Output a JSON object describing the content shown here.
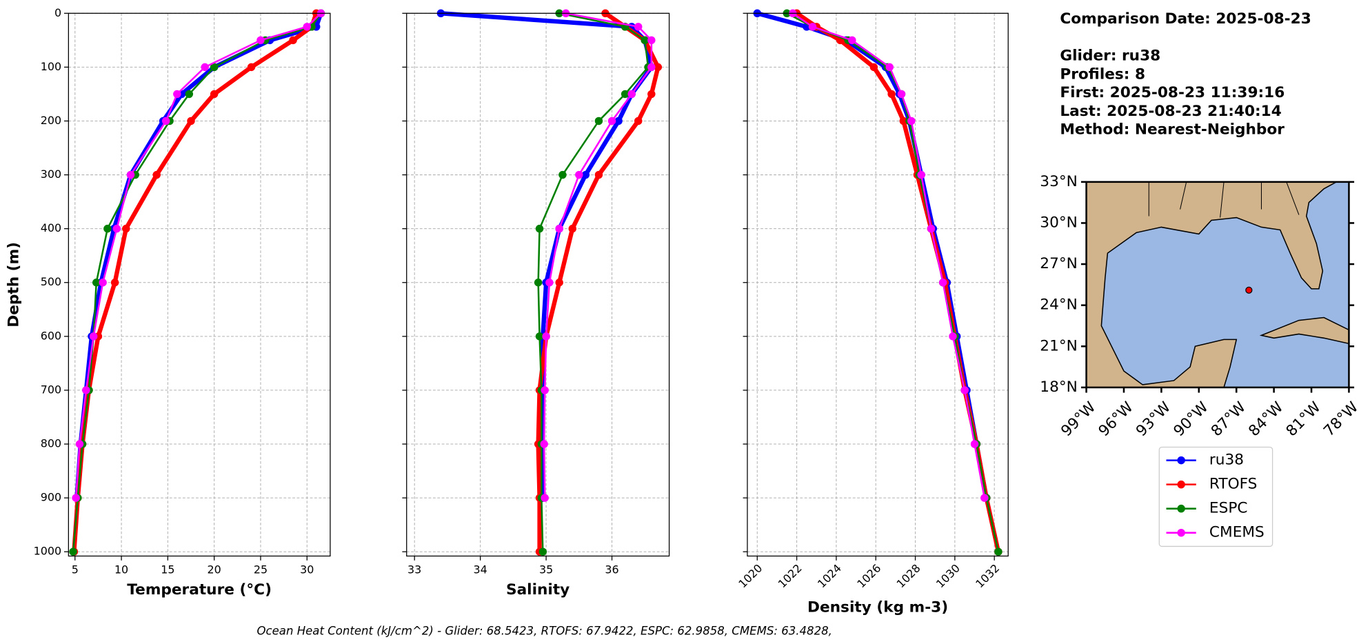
{
  "chart_data": [
    {
      "type": "line",
      "xlabel": "Temperature (°C)",
      "ylabel": "Depth (m)",
      "xlim": [
        4.3,
        32.5
      ],
      "xticks": [
        5,
        10,
        15,
        20,
        25,
        30
      ],
      "ylim": [
        1008,
        0
      ],
      "yticks": [
        0,
        100,
        200,
        300,
        400,
        500,
        600,
        700,
        800,
        900,
        1000
      ],
      "show_ytick_labels": true,
      "grid": true,
      "depth": [
        0,
        25,
        50,
        100,
        150,
        200,
        300,
        400,
        500,
        600,
        700,
        800,
        900,
        1000
      ],
      "series": [
        {
          "name": "ru38",
          "color": "#0000ff",
          "linewidth": 5,
          "values": [
            31.5,
            31,
            26,
            20,
            16.5,
            14.5,
            11,
            9.2,
            7.8,
            6.8,
            6.2,
            5.6,
            5.2,
            null
          ]
        },
        {
          "name": "RTOFS",
          "color": "#ff0000",
          "linewidth": 5,
          "values": [
            31,
            30.5,
            28.5,
            24,
            20,
            17.5,
            13.8,
            10.5,
            9.3,
            7.5,
            6.5,
            5.8,
            5.3,
            4.9
          ]
        },
        {
          "name": "ESPC",
          "color": "#008000",
          "linewidth": 2,
          "values": [
            31.5,
            30.5,
            25.5,
            20,
            17.3,
            15.2,
            11.5,
            8.5,
            7.3,
            7,
            6.5,
            5.8,
            5.3,
            4.8
          ]
        },
        {
          "name": "CMEMS",
          "color": "#ff00ff",
          "linewidth": 2,
          "values": [
            31.5,
            30,
            25,
            19,
            16,
            14.8,
            11,
            9.5,
            8,
            7,
            6.2,
            5.5,
            5.1,
            null
          ]
        }
      ]
    },
    {
      "type": "line",
      "xlabel": "Salinity",
      "xlim": [
        32.88,
        36.87
      ],
      "xticks": [
        33,
        34,
        35,
        36
      ],
      "ylim": [
        1008,
        0
      ],
      "yticks": [
        0,
        100,
        200,
        300,
        400,
        500,
        600,
        700,
        800,
        900,
        1000
      ],
      "show_ytick_labels": false,
      "grid": true,
      "depth": [
        0,
        25,
        50,
        100,
        150,
        200,
        300,
        400,
        500,
        600,
        700,
        800,
        900,
        1000
      ],
      "series": [
        {
          "name": "ru38",
          "color": "#0000ff",
          "linewidth": 5,
          "values": [
            33.4,
            36.3,
            36.5,
            36.6,
            36.3,
            36.1,
            35.6,
            35.2,
            35.0,
            34.95,
            34.95,
            34.95,
            34.95,
            null
          ]
        },
        {
          "name": "RTOFS",
          "color": "#ff0000",
          "linewidth": 5,
          "values": [
            35.9,
            36.2,
            36.5,
            36.7,
            36.6,
            36.4,
            35.8,
            35.4,
            35.2,
            35.0,
            34.9,
            34.88,
            34.9,
            34.9
          ]
        },
        {
          "name": "ESPC",
          "color": "#008000",
          "linewidth": 2,
          "values": [
            35.2,
            36.2,
            36.5,
            36.55,
            36.2,
            35.8,
            35.25,
            34.9,
            34.88,
            34.9,
            34.93,
            34.93,
            34.93,
            34.95
          ]
        },
        {
          "name": "CMEMS",
          "color": "#ff00ff",
          "linewidth": 2,
          "values": [
            35.3,
            36.4,
            36.6,
            36.6,
            36.3,
            36.0,
            35.5,
            35.2,
            35.05,
            35.0,
            34.98,
            34.97,
            34.98,
            null
          ]
        }
      ]
    },
    {
      "type": "line",
      "xlabel": "Density (kg m-3)",
      "xlim": [
        1019.5,
        1032.7
      ],
      "xticks": [
        1020,
        1022,
        1024,
        1026,
        1028,
        1030,
        1032
      ],
      "xtick_rotation": -45,
      "ylim": [
        1008,
        0
      ],
      "yticks": [
        0,
        100,
        200,
        300,
        400,
        500,
        600,
        700,
        800,
        900,
        1000
      ],
      "show_ytick_labels": false,
      "grid": true,
      "depth": [
        0,
        25,
        50,
        100,
        150,
        200,
        300,
        400,
        500,
        600,
        700,
        800,
        900,
        1000
      ],
      "series": [
        {
          "name": "ru38",
          "color": "#0000ff",
          "linewidth": 5,
          "values": [
            1020,
            1022.5,
            1024.5,
            1026.5,
            1027.2,
            1027.7,
            1028.3,
            1028.9,
            1029.6,
            1030.1,
            1030.6,
            1031.1,
            1031.6,
            null
          ]
        },
        {
          "name": "RTOFS",
          "color": "#ff0000",
          "linewidth": 5,
          "values": [
            1022,
            1023,
            1024.2,
            1025.9,
            1026.8,
            1027.4,
            1028.1,
            1028.8,
            1029.5,
            1030.0,
            1030.5,
            1031.1,
            1031.6,
            1032.2
          ]
        },
        {
          "name": "ESPC",
          "color": "#008000",
          "linewidth": 2,
          "values": [
            1021.5,
            1022.8,
            1024.6,
            1026.6,
            1027.3,
            1027.7,
            1028.2,
            1028.8,
            1029.4,
            1030.0,
            1030.5,
            1031.1,
            1031.6,
            1032.2
          ]
        },
        {
          "name": "CMEMS",
          "color": "#ff00ff",
          "linewidth": 2,
          "values": [
            1021.8,
            1022.8,
            1024.8,
            1026.7,
            1027.3,
            1027.8,
            1028.3,
            1028.8,
            1029.4,
            1029.9,
            1030.5,
            1031.0,
            1031.5,
            null
          ]
        }
      ]
    }
  ],
  "info": [
    "Comparison Date: 2025-08-23",
    "Glider: ru38",
    "Profiles: 8",
    "First: 2025-08-23 11:39:16",
    "Last: 2025-08-23 21:40:14",
    "Method: Nearest-Neighbor"
  ],
  "map": {
    "xlim": [
      -99,
      -78
    ],
    "ylim": [
      18,
      33
    ],
    "xticks": [
      {
        "value": -99,
        "label": "99°W"
      },
      {
        "value": -96,
        "label": "96°W"
      },
      {
        "value": -93,
        "label": "93°W"
      },
      {
        "value": -90,
        "label": "90°W"
      },
      {
        "value": -87,
        "label": "87°W"
      },
      {
        "value": -84,
        "label": "84°W"
      },
      {
        "value": -81,
        "label": "81°W"
      },
      {
        "value": -78,
        "label": "78°W"
      }
    ],
    "yticks": [
      {
        "value": 18,
        "label": "18°N"
      },
      {
        "value": 21,
        "label": "21°N"
      },
      {
        "value": 24,
        "label": "24°N"
      },
      {
        "value": 27,
        "label": "27°N"
      },
      {
        "value": 30,
        "label": "30°N"
      },
      {
        "value": 33,
        "label": "33°N"
      }
    ],
    "point": {
      "lon": -86,
      "lat": 25.1,
      "color": "#ff0000"
    }
  },
  "footer": "Ocean Heat Content (kJ/cm^2) - Glider: 68.5423,  RTOFS: 67.9422,  ESPC: 62.9858,  CMEMS: 63.4828,"
}
